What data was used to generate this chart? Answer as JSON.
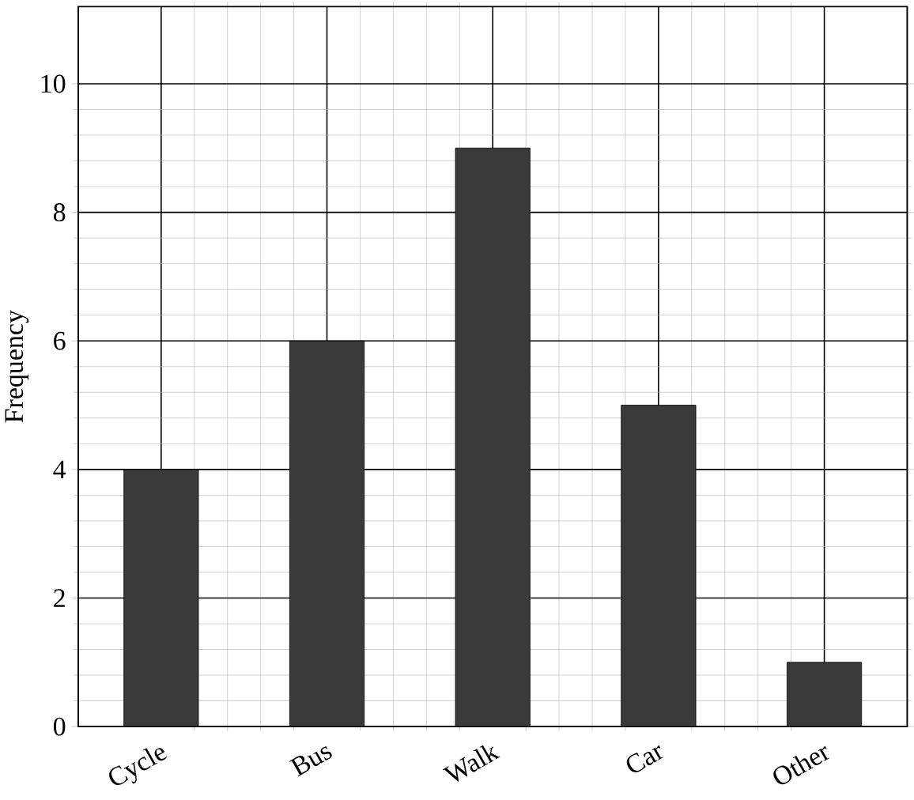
{
  "chart_data": {
    "type": "bar",
    "ylabel": "Frequency",
    "categories": [
      "Cycle",
      "Bus",
      "Walk",
      "Car",
      "Other"
    ],
    "values": [
      4,
      6,
      9,
      5,
      1
    ],
    "color": "#3a3a3a",
    "ylim": [
      0,
      11.2
    ],
    "yticks": [
      0,
      2,
      4,
      6,
      8,
      10
    ],
    "grid": true
  }
}
